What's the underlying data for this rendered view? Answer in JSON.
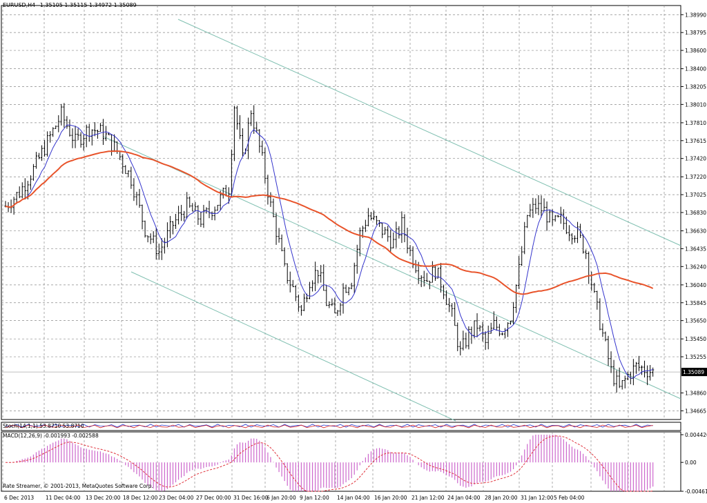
{
  "header": {
    "symbol": "EURUSD,H4",
    "ohlc": "1.35105 1.35115 1.34972 1.35089"
  },
  "stoch_title": "Stoch(14,1,1) 53.8710 53.8710",
  "macd_title": "MACD(12,26,9) -0.001993 -0.002588",
  "footer": "Rate Streamer, © 2001-2013, MetaQuotes Software Corp.",
  "price_label": "1.35089",
  "chart_data": [
    {
      "type": "candlestick",
      "title": "EURUSD,H4",
      "y_ticks": [
        "1.38990",
        "1.38795",
        "1.38600",
        "1.38400",
        "1.38205",
        "1.38010",
        "1.37810",
        "1.37615",
        "1.37420",
        "1.37220",
        "1.37025",
        "1.36830",
        "1.36630",
        "1.36435",
        "1.36240",
        "1.36040",
        "1.35845",
        "1.35650",
        "1.35450",
        "1.35255",
        "1.35089",
        "1.34860",
        "1.34665"
      ],
      "ylim": [
        1.3457,
        1.3909
      ],
      "x_ticks": [
        "6 Dec 2013",
        "11 Dec 04:00",
        "13 Dec 20:00",
        "18 Dec 12:00",
        "23 Dec 04:00",
        "27 Dec 00:00",
        "31 Dec 16:00",
        "6 Jan 20:00",
        "9 Jan 12:00",
        "14 Jan 04:00",
        "16 Jan 20:00",
        "21 Jan 12:00",
        "24 Jan 04:00",
        "28 Jan 20:00",
        "31 Jan 12:00",
        "5 Feb 04:00"
      ],
      "close_path": [
        [
          0,
          1.369
        ],
        [
          5,
          1.3705
        ],
        [
          10,
          1.373
        ],
        [
          15,
          1.376
        ],
        [
          20,
          1.379
        ],
        [
          25,
          1.376
        ],
        [
          30,
          1.3775
        ],
        [
          35,
          1.377
        ],
        [
          40,
          1.375
        ],
        [
          45,
          1.372
        ],
        [
          50,
          1.3665
        ],
        [
          55,
          1.364
        ],
        [
          60,
          1.367
        ],
        [
          65,
          1.369
        ],
        [
          70,
          1.3675
        ],
        [
          75,
          1.369
        ],
        [
          80,
          1.371
        ],
        [
          82,
          1.38
        ],
        [
          85,
          1.374
        ],
        [
          88,
          1.3795
        ],
        [
          92,
          1.374
        ],
        [
          95,
          1.369
        ],
        [
          98,
          1.365
        ],
        [
          100,
          1.362
        ],
        [
          103,
          1.36
        ],
        [
          106,
          1.3575
        ],
        [
          109,
          1.361
        ],
        [
          112,
          1.362
        ],
        [
          115,
          1.3585
        ],
        [
          118,
          1.357
        ],
        [
          121,
          1.36
        ],
        [
          124,
          1.361
        ],
        [
          127,
          1.366
        ],
        [
          130,
          1.368
        ],
        [
          133,
          1.367
        ],
        [
          136,
          1.366
        ],
        [
          139,
          1.365
        ],
        [
          142,
          1.367
        ],
        [
          145,
          1.364
        ],
        [
          148,
          1.362
        ],
        [
          151,
          1.361
        ],
        [
          154,
          1.362
        ],
        [
          157,
          1.36
        ],
        [
          160,
          1.357
        ],
        [
          163,
          1.353
        ],
        [
          166,
          1.355
        ],
        [
          169,
          1.356
        ],
        [
          172,
          1.354
        ],
        [
          175,
          1.356
        ],
        [
          178,
          1.3555
        ],
        [
          181,
          1.357
        ],
        [
          184,
          1.362
        ],
        [
          187,
          1.368
        ],
        [
          190,
          1.369
        ],
        [
          193,
          1.3685
        ],
        [
          196,
          1.367
        ],
        [
          199,
          1.3675
        ],
        [
          202,
          1.3665
        ],
        [
          205,
          1.366
        ],
        [
          208,
          1.364
        ],
        [
          211,
          1.359
        ],
        [
          214,
          1.355
        ],
        [
          217,
          1.351
        ],
        [
          220,
          1.349
        ],
        [
          223,
          1.3505
        ],
        [
          226,
          1.3515
        ],
        [
          229,
          1.3512
        ],
        [
          232,
          1.3509
        ]
      ],
      "series": [
        {
          "name": "MA fast",
          "color": "#3333cc"
        },
        {
          "name": "MA slow",
          "color": "#e8532a"
        }
      ],
      "channel_color": "#7fbfb0",
      "candle_color": "#000000",
      "grid": true
    },
    {
      "type": "bar",
      "title": "MACD(12,26,9) -0.001993 -0.002588",
      "y_ticks": [
        "0.004426",
        "0.00",
        "-0.004612"
      ],
      "ylim": [
        -0.004612,
        0.004426
      ],
      "bar_color": "#cc66cc",
      "signal_color": "#e0303a"
    }
  ]
}
